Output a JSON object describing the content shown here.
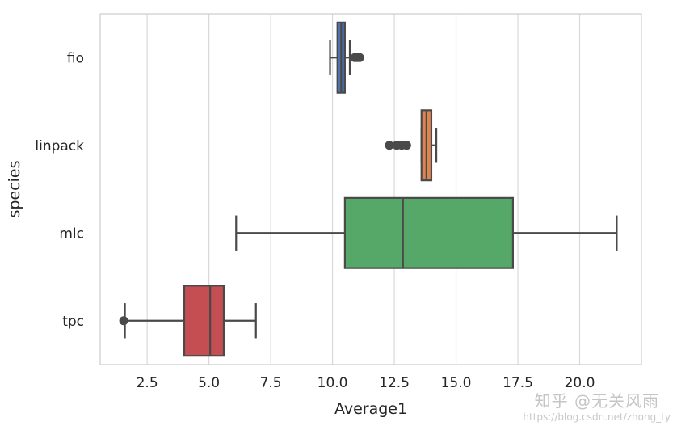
{
  "chart_data": {
    "type": "boxplot",
    "orientation": "horizontal",
    "xlabel": "Average1",
    "ylabel": "species",
    "xlim": [
      0.6,
      22.5
    ],
    "xticks": [
      2.5,
      5.0,
      7.5,
      10.0,
      12.5,
      15.0,
      17.5,
      20.0
    ],
    "xtick_labels": [
      "2.5",
      "5.0",
      "7.5",
      "10.0",
      "12.5",
      "15.0",
      "17.5",
      "20.0"
    ],
    "grid": "vertical",
    "categories": [
      "fio",
      "linpack",
      "mlc",
      "tpc"
    ],
    "boxes": [
      {
        "name": "fio",
        "color": "#4c72b0",
        "whisker_low": 9.9,
        "q1": 10.2,
        "median": 10.35,
        "q3": 10.5,
        "whisker_high": 10.7,
        "outliers": [
          10.9,
          11.0,
          11.1
        ]
      },
      {
        "name": "linpack",
        "color": "#dd8452",
        "whisker_low": 13.6,
        "q1": 13.6,
        "median": 13.8,
        "q3": 14.0,
        "whisker_high": 14.2,
        "outliers": [
          12.3,
          12.6,
          12.8,
          13.0
        ]
      },
      {
        "name": "mlc",
        "color": "#55a868",
        "whisker_low": 6.1,
        "q1": 10.5,
        "median": 12.85,
        "q3": 17.3,
        "whisker_high": 21.5,
        "outliers": []
      },
      {
        "name": "tpc",
        "color": "#c44e52",
        "whisker_low": 1.6,
        "q1": 4.0,
        "median": 5.05,
        "q3": 5.6,
        "whisker_high": 6.9,
        "outliers": [
          1.55
        ]
      }
    ]
  },
  "watermark": {
    "main": "知乎 @无关风雨",
    "url": "https://blog.csdn.net/zhong_ty"
  }
}
